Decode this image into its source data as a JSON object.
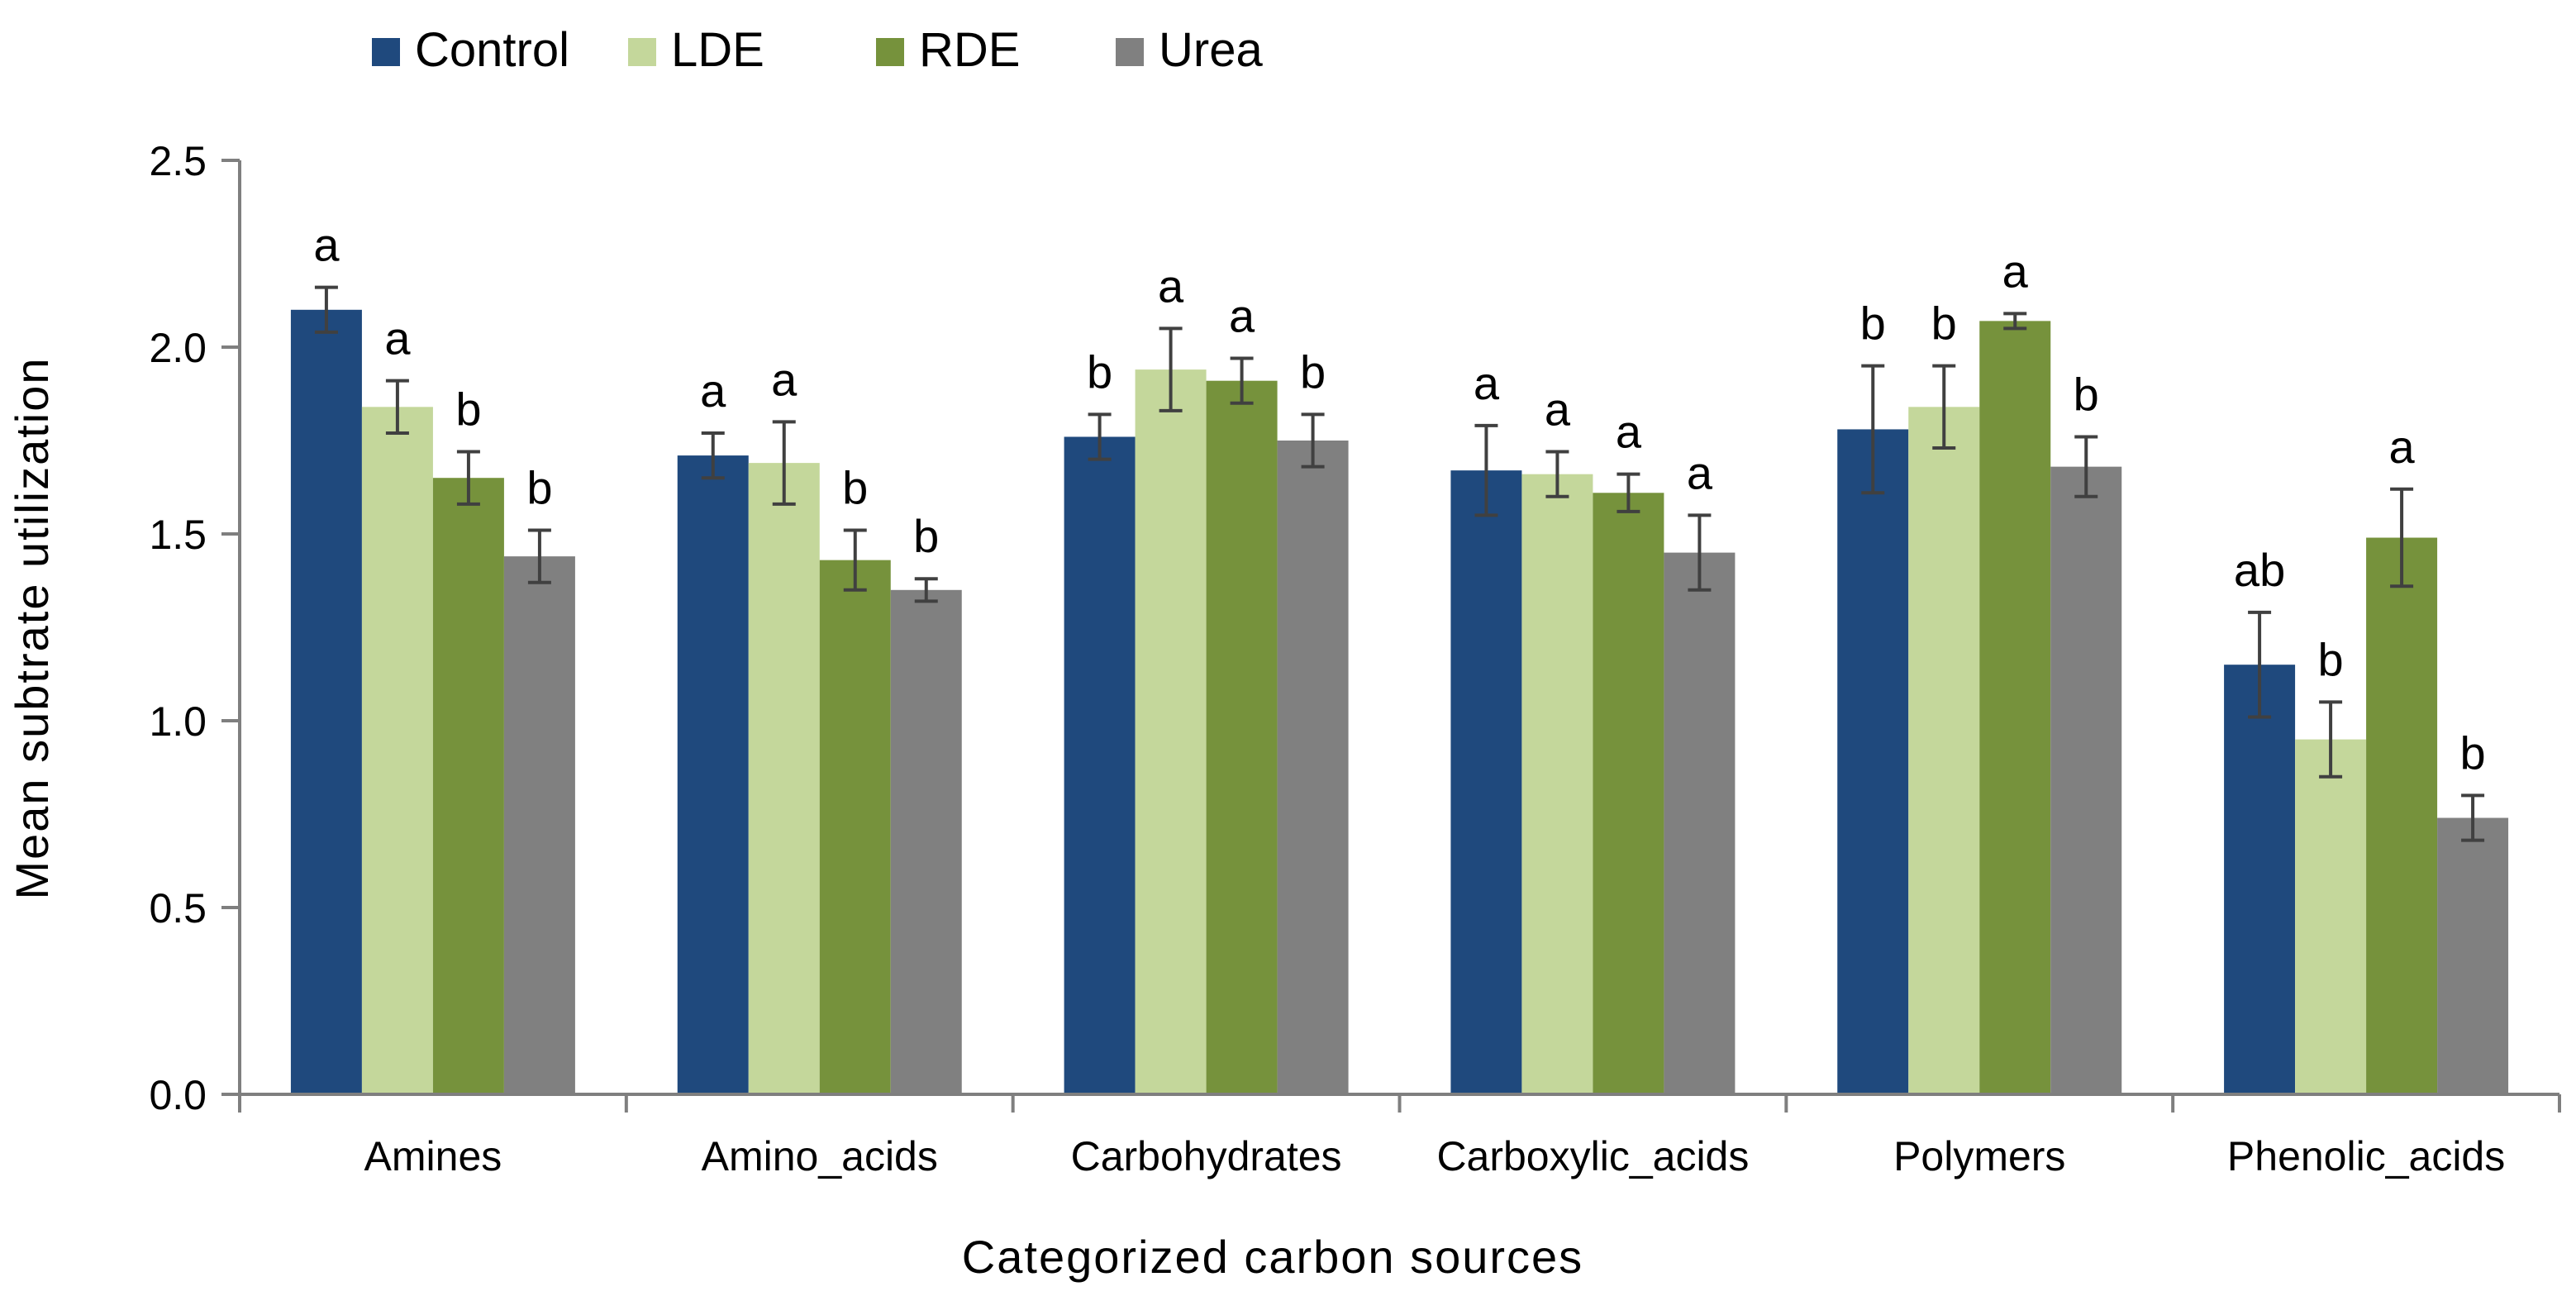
{
  "chart_data": {
    "type": "bar",
    "xlabel": "Categorized  carbon  sources",
    "ylabel": "Mean subtrate utilization",
    "ylim": [
      0,
      2.5
    ],
    "yticks": [
      "0.0",
      "0.5",
      "1.0",
      "1.5",
      "2.0",
      "2.5"
    ],
    "legend_position": "top-left",
    "grid": false,
    "categories": [
      "Amines",
      "Amino_acids",
      "Carbohydrates",
      "Carboxylic_acids",
      "Polymers",
      "Phenolic_acids"
    ],
    "series": [
      {
        "name": "Control",
        "color": "#1f497d",
        "values": [
          2.1,
          1.71,
          1.76,
          1.67,
          1.78,
          1.15
        ],
        "errors": [
          0.06,
          0.06,
          0.06,
          0.12,
          0.17,
          0.14
        ],
        "labels": [
          "a",
          "a",
          "b",
          "a",
          "b",
          "ab"
        ]
      },
      {
        "name": "LDE",
        "color": "#c4d79b",
        "values": [
          1.84,
          1.69,
          1.94,
          1.66,
          1.84,
          0.95
        ],
        "errors": [
          0.07,
          0.11,
          0.11,
          0.06,
          0.11,
          0.1
        ],
        "labels": [
          "a",
          "a",
          "a",
          "a",
          "b",
          "b"
        ]
      },
      {
        "name": "RDE",
        "color": "#76923c",
        "values": [
          1.65,
          1.43,
          1.91,
          1.61,
          2.07,
          1.49
        ],
        "errors": [
          0.07,
          0.08,
          0.06,
          0.05,
          0.02,
          0.13
        ],
        "labels": [
          "b",
          "b",
          "a",
          "a",
          "a",
          "a"
        ]
      },
      {
        "name": "Urea",
        "color": "#808080",
        "values": [
          1.44,
          1.35,
          1.75,
          1.45,
          1.68,
          0.74
        ],
        "errors": [
          0.07,
          0.03,
          0.07,
          0.1,
          0.08,
          0.06
        ],
        "labels": [
          "b",
          "b",
          "b",
          "a",
          "b",
          "b"
        ]
      }
    ]
  },
  "colors": {
    "axis": "#7f7f7f",
    "errorbar": "#404040",
    "text": "#000000"
  }
}
